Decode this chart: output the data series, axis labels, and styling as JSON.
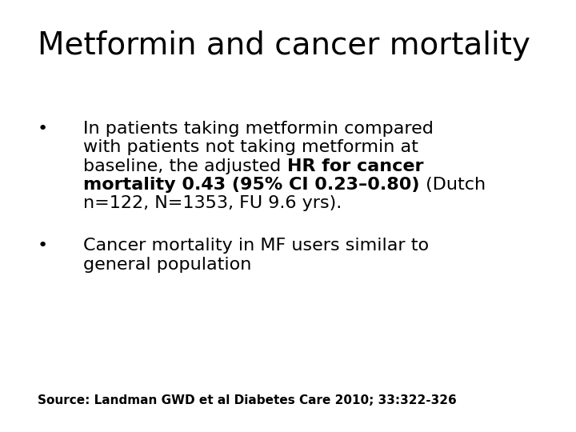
{
  "title": "Metformin and cancer mortality",
  "title_fontsize": 28,
  "background_color": "#ffffff",
  "text_color": "#000000",
  "bullet_fontsize": 16,
  "source_fontsize": 11,
  "source_text": "Source: Landman GWD et al Diabetes Care 2010; 33:322-326",
  "lines": [
    {
      "parts": [
        {
          "text": "In patients taking metformin compared",
          "bold": false
        }
      ]
    },
    {
      "parts": [
        {
          "text": "with patients not taking metformin at",
          "bold": false
        }
      ]
    },
    {
      "parts": [
        {
          "text": "baseline, the adjusted ",
          "bold": false
        },
        {
          "text": "HR for cancer",
          "bold": true
        }
      ]
    },
    {
      "parts": [
        {
          "text": "mortality 0.43 (95% CI 0.23–0.80)",
          "bold": true
        },
        {
          "text": " (Dutch",
          "bold": false
        }
      ]
    },
    {
      "parts": [
        {
          "text": "n=122, N=1353, FU 9.6 yrs).",
          "bold": false
        }
      ]
    }
  ],
  "bullet2_lines": [
    {
      "parts": [
        {
          "text": "Cancer mortality in MF users similar to",
          "bold": false
        }
      ]
    },
    {
      "parts": [
        {
          "text": "general population",
          "bold": false
        }
      ]
    }
  ]
}
